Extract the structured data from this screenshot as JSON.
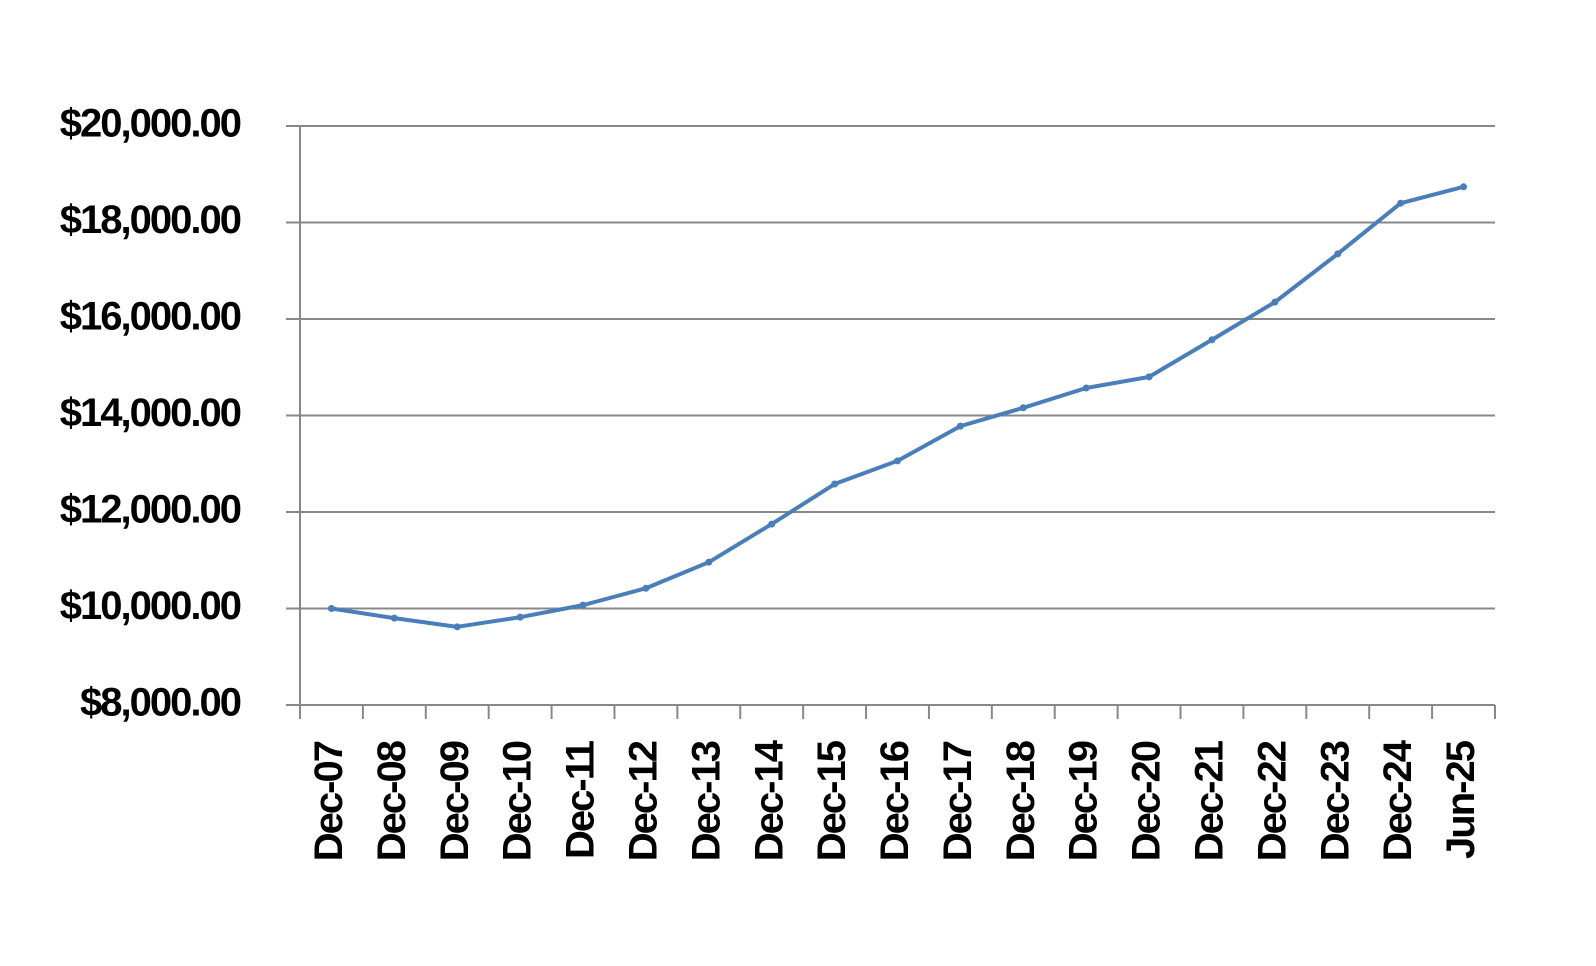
{
  "chart_data": {
    "type": "line",
    "categories": [
      "Dec-07",
      "Dec-08",
      "Dec-09",
      "Dec-10",
      "Dec-11",
      "Dec-12",
      "Dec-13",
      "Dec-14",
      "Dec-15",
      "Dec-16",
      "Dec-17",
      "Dec-18",
      "Dec-19",
      "Dec-20",
      "Dec-21",
      "Dec-22",
      "Dec-23",
      "Dec-24",
      "Jun-25"
    ],
    "series": [
      {
        "color": "#4a7ebb",
        "values": [
          10000,
          9800,
          9620,
          9820,
          10070,
          10420,
          10960,
          11750,
          12580,
          13060,
          13780,
          14160,
          14570,
          14800,
          15570,
          16350,
          17350,
          18400,
          18740
        ]
      }
    ],
    "ylim": [
      8000,
      20000
    ],
    "yticks": [
      {
        "value": 8000,
        "label": "$8,000.00"
      },
      {
        "value": 10000,
        "label": "$10,000.00"
      },
      {
        "value": 12000,
        "label": "$12,000.00"
      },
      {
        "value": 14000,
        "label": "$14,000.00"
      },
      {
        "value": 16000,
        "label": "$16,000.00"
      },
      {
        "value": 18000,
        "label": "$18,000.00"
      },
      {
        "value": 20000,
        "label": "$20,000.00"
      }
    ],
    "grid": true
  }
}
